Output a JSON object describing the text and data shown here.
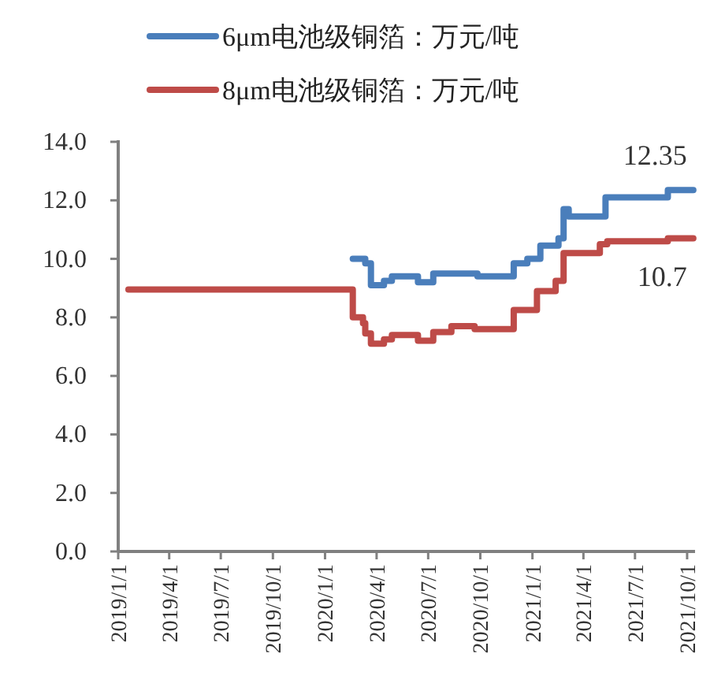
{
  "chart_data": {
    "type": "step",
    "legend": "top",
    "xlim": [
      "2019-01-01",
      "2021-10-15"
    ],
    "ylim": [
      0,
      14
    ],
    "yticks": [
      {
        "value": 0,
        "label": "0.0"
      },
      {
        "value": 2,
        "label": "2.0"
      },
      {
        "value": 4,
        "label": "4.0"
      },
      {
        "value": 6,
        "label": "6.0"
      },
      {
        "value": 8,
        "label": "8.0"
      },
      {
        "value": 10,
        "label": "10.0"
      },
      {
        "value": 12,
        "label": "12.0"
      },
      {
        "value": 14,
        "label": "14.0"
      }
    ],
    "xticks": [
      {
        "value": "2019-01-01",
        "label": "2019/1/1"
      },
      {
        "value": "2019-04-01",
        "label": "2019/4/1"
      },
      {
        "value": "2019-07-01",
        "label": "2019/7/1"
      },
      {
        "value": "2019-10-01",
        "label": "2019/10/1"
      },
      {
        "value": "2020-01-01",
        "label": "2020/1/1"
      },
      {
        "value": "2020-04-01",
        "label": "2020/4/1"
      },
      {
        "value": "2020-07-01",
        "label": "2020/7/1"
      },
      {
        "value": "2020-10-01",
        "label": "2020/10/1"
      },
      {
        "value": "2021-01-01",
        "label": "2021/1/1"
      },
      {
        "value": "2021-04-01",
        "label": "2021/4/1"
      },
      {
        "value": "2021-07-01",
        "label": "2021/7/1"
      },
      {
        "value": "2021-10-01",
        "label": "2021/10/1"
      }
    ],
    "series": [
      {
        "name": "6μm电池级铜箔：万元/吨",
        "color": "#4a7ebb",
        "x": [
          "2020-02-19",
          "2020-03-12",
          "2020-03-22",
          "2020-04-14",
          "2020-04-28",
          "2020-06-13",
          "2020-07-10",
          "2020-09-26",
          "2020-11-29",
          "2020-12-23",
          "2021-01-15",
          "2021-02-16",
          "2021-02-25",
          "2021-03-06",
          "2021-04-26",
          "2021-05-10",
          "2021-08-28",
          "2021-10-12"
        ],
        "values": [
          10.0,
          9.85,
          9.1,
          9.25,
          9.4,
          9.2,
          9.5,
          9.4,
          9.85,
          10.0,
          10.45,
          10.7,
          11.7,
          11.45,
          11.45,
          12.1,
          12.35,
          12.35
        ]
      },
      {
        "name": "8μm电池级铜箔：万元/吨",
        "color": "#be4b48",
        "x": [
          "2019-01-19",
          "2020-02-19",
          "2020-03-08",
          "2020-03-12",
          "2020-03-22",
          "2020-04-14",
          "2020-04-28",
          "2020-06-13",
          "2020-07-10",
          "2020-08-11",
          "2020-09-21",
          "2020-11-29",
          "2021-01-09",
          "2021-02-11",
          "2021-02-25",
          "2021-04-30",
          "2021-05-13",
          "2021-08-28",
          "2021-10-12"
        ],
        "values": [
          8.95,
          8.0,
          7.8,
          7.45,
          7.1,
          7.25,
          7.4,
          7.2,
          7.5,
          7.7,
          7.6,
          8.25,
          8.9,
          9.25,
          10.2,
          10.5,
          10.6,
          10.7,
          10.7
        ]
      }
    ],
    "annotations": [
      {
        "text": "12.35",
        "x": "2021-10-12",
        "y": 12.35
      },
      {
        "text": "10.7",
        "x": "2021-10-12",
        "y": 10.7
      }
    ]
  }
}
